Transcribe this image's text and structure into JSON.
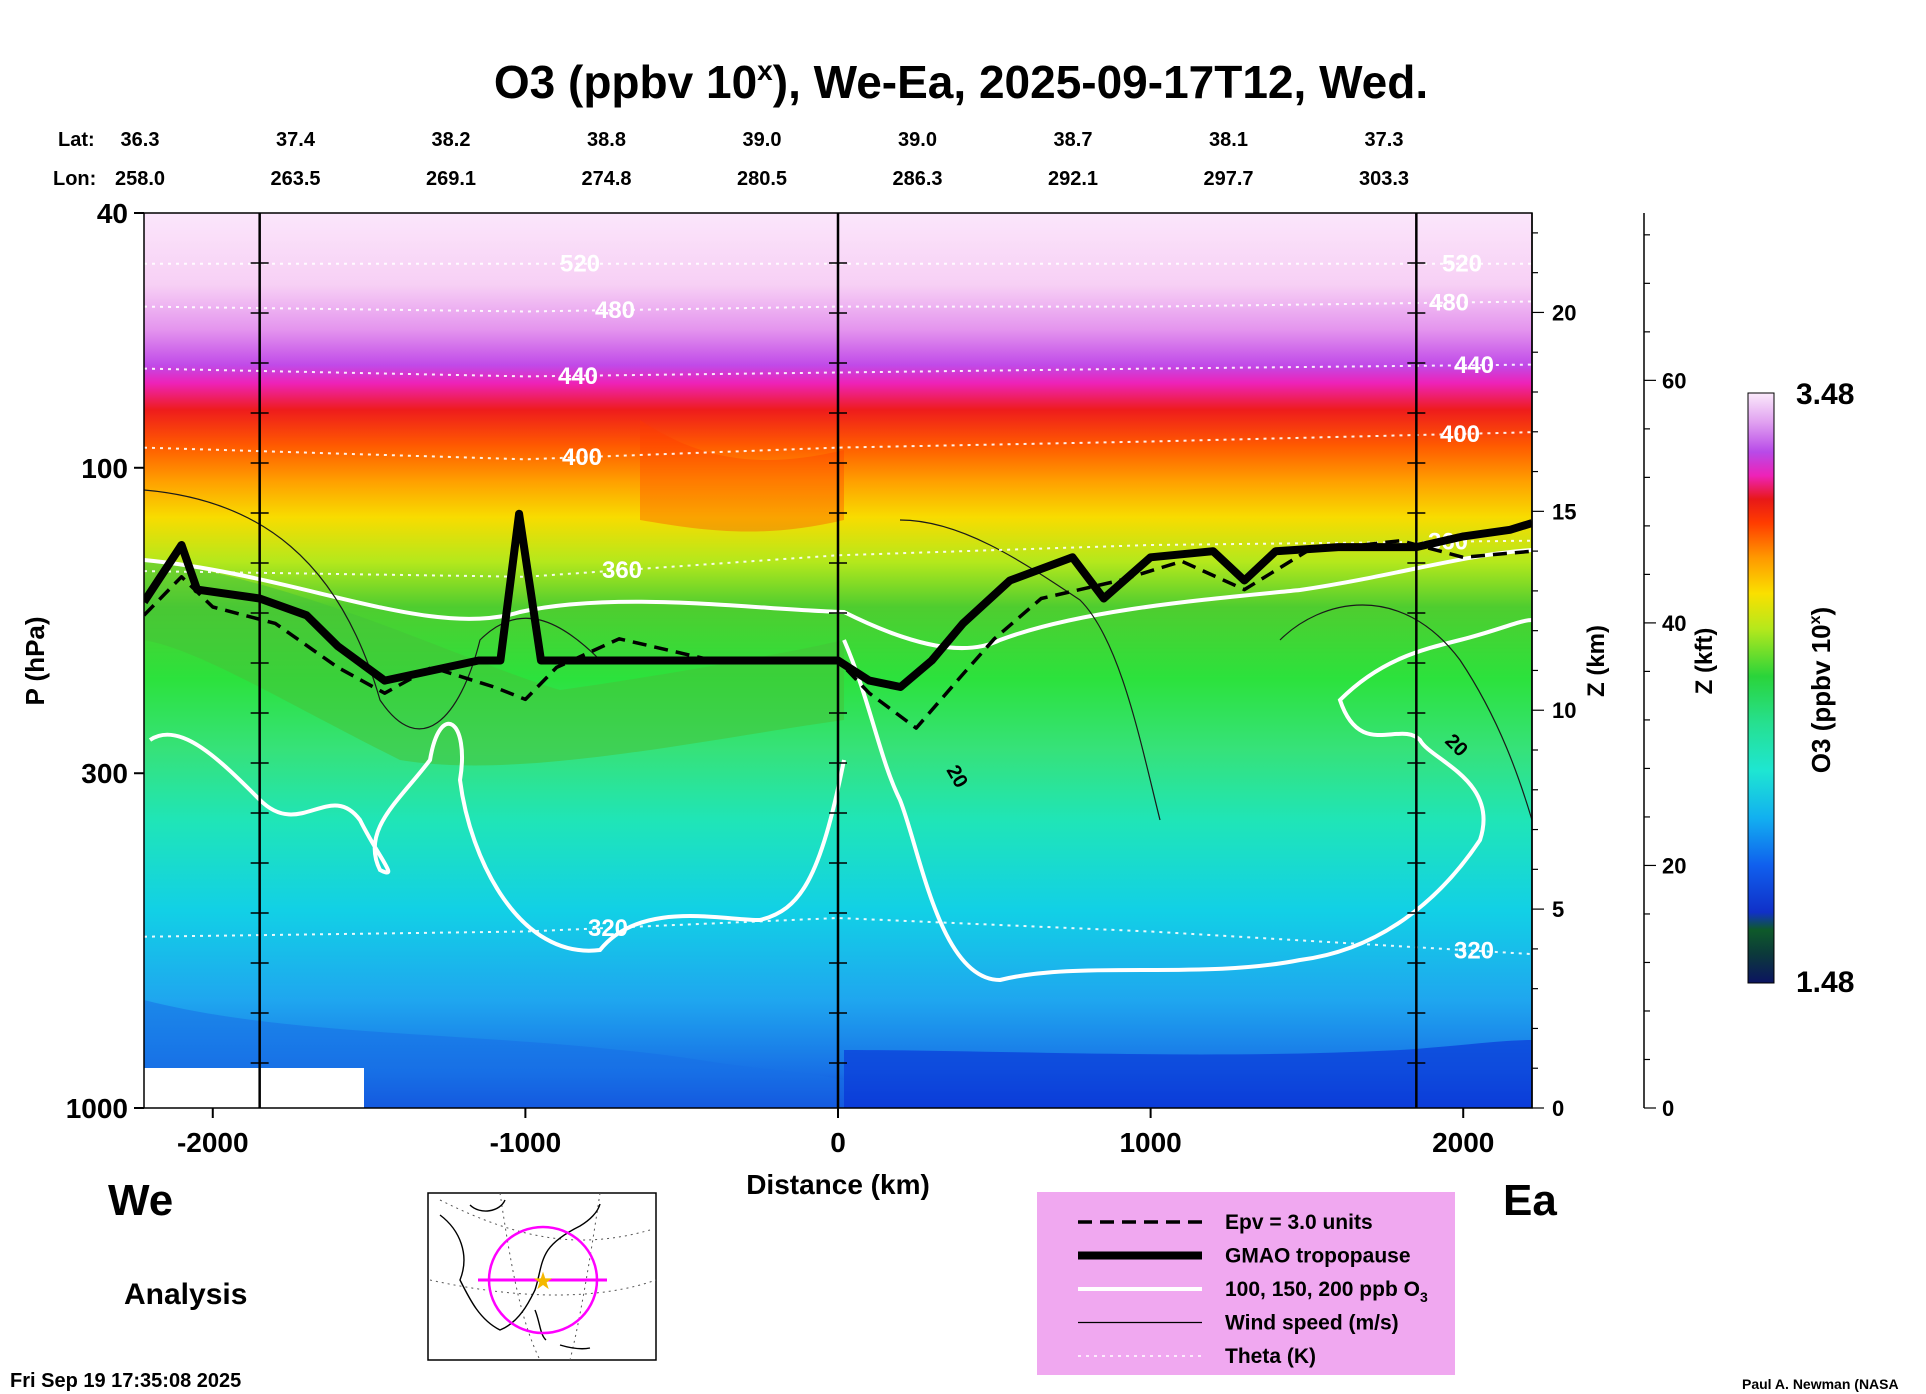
{
  "chart_data": {
    "type": "heatmap",
    "title": "O3 (ppbv 10",
    "title_sup": "x",
    "title_rest": "), We-Ea, 2025-09-17T12, Wed.",
    "lat_label": "Lat:",
    "lon_label": "Lon:",
    "lat_values": [
      "36.3",
      "37.4",
      "38.2",
      "38.8",
      "39.0",
      "39.0",
      "38.7",
      "38.1",
      "37.3"
    ],
    "lon_values": [
      "258.0",
      "263.5",
      "269.1",
      "274.8",
      "280.5",
      "286.3",
      "292.1",
      "297.7",
      "303.3"
    ],
    "xlabel": "Distance (km)",
    "xlim": [
      -2220,
      2220
    ],
    "x_ticks": [
      -2000,
      -1000,
      0,
      1000,
      2000
    ],
    "x_tick_labels": [
      "-2000",
      "-1000",
      "0",
      "1000",
      "2000"
    ],
    "ylabel": "P (hPa)",
    "ylim": [
      40,
      1000
    ],
    "y_ticks": [
      40,
      100,
      300,
      1000
    ],
    "y_tick_labels": [
      "40",
      "100",
      "300",
      "1000"
    ],
    "z_km_label": "Z (km)",
    "z_km_ticks": [
      0,
      5,
      10,
      15,
      20
    ],
    "z_km_tick_labels": [
      "0",
      "5",
      "10",
      "15",
      "20"
    ],
    "z_kft_label": "Z (kft)",
    "z_kft_ticks": [
      0,
      20,
      40,
      60
    ],
    "z_kft_tick_labels": [
      "0",
      "20",
      "40",
      "60"
    ],
    "colorbar_label": "O3 (ppbv 10",
    "colorbar_label_sup": "x",
    "colorbar_label_rest": ")",
    "colorbar_min": 1.48,
    "colorbar_max": 3.48,
    "colorbar_min_label": "1.48",
    "colorbar_max_label": "3.48",
    "left_end_label": "We",
    "right_end_label": "Ea",
    "theta_contours": [
      {
        "theta": 520,
        "label": "520",
        "points": [
          [
            -2220,
            48
          ],
          [
            0,
            48
          ],
          [
            2220,
            48
          ]
        ]
      },
      {
        "theta": 480,
        "label": "480",
        "points": [
          [
            -2220,
            56
          ],
          [
            -1000,
            57
          ],
          [
            0,
            56
          ],
          [
            1000,
            56
          ],
          [
            2220,
            55
          ]
        ]
      },
      {
        "theta": 440,
        "label": "440",
        "points": [
          [
            -2220,
            70
          ],
          [
            -1000,
            72
          ],
          [
            0,
            71
          ],
          [
            1000,
            70
          ],
          [
            2220,
            69
          ]
        ]
      },
      {
        "theta": 400,
        "label": "400",
        "points": [
          [
            -2220,
            93
          ],
          [
            -1000,
            97
          ],
          [
            0,
            93
          ],
          [
            1000,
            91
          ],
          [
            2220,
            88
          ]
        ]
      },
      {
        "theta": 360,
        "label": "360",
        "points": [
          [
            -2220,
            145
          ],
          [
            -1000,
            148
          ],
          [
            0,
            137
          ],
          [
            1000,
            132
          ],
          [
            2220,
            130
          ]
        ]
      },
      {
        "theta": 320,
        "label": "320",
        "points": [
          [
            -2220,
            540
          ],
          [
            -1000,
            530
          ],
          [
            0,
            505
          ],
          [
            1000,
            530
          ],
          [
            2220,
            575
          ]
        ]
      }
    ],
    "series": [
      {
        "name": "GMAO tropopause",
        "points": [
          [
            -2220,
            162
          ],
          [
            -2100,
            132
          ],
          [
            -2050,
            155
          ],
          [
            -1850,
            160
          ],
          [
            -1700,
            170
          ],
          [
            -1600,
            190
          ],
          [
            -1450,
            215
          ],
          [
            -1150,
            200
          ],
          [
            -1080,
            200
          ],
          [
            -1020,
            118
          ],
          [
            -950,
            200
          ],
          [
            0,
            200
          ],
          [
            100,
            215
          ],
          [
            200,
            220
          ],
          [
            300,
            200
          ],
          [
            400,
            175
          ],
          [
            550,
            150
          ],
          [
            750,
            138
          ],
          [
            850,
            160
          ],
          [
            1000,
            138
          ],
          [
            1200,
            135
          ],
          [
            1300,
            150
          ],
          [
            1400,
            135
          ],
          [
            1600,
            133
          ],
          [
            1850,
            133
          ],
          [
            2000,
            128
          ],
          [
            2150,
            125
          ],
          [
            2220,
            122
          ]
        ]
      },
      {
        "name": "Epv = 3.0 units",
        "points": [
          [
            -2220,
            170
          ],
          [
            -2100,
            148
          ],
          [
            -2000,
            165
          ],
          [
            -1800,
            175
          ],
          [
            -1600,
            205
          ],
          [
            -1450,
            225
          ],
          [
            -1300,
            205
          ],
          [
            -1100,
            220
          ],
          [
            -1000,
            230
          ],
          [
            -900,
            205
          ],
          [
            -700,
            185
          ],
          [
            -400,
            200
          ],
          [
            0,
            200
          ],
          [
            100,
            225
          ],
          [
            250,
            255
          ],
          [
            400,
            210
          ],
          [
            500,
            185
          ],
          [
            650,
            160
          ],
          [
            900,
            150
          ],
          [
            1100,
            140
          ],
          [
            1300,
            155
          ],
          [
            1500,
            135
          ],
          [
            1800,
            130
          ],
          [
            2000,
            138
          ],
          [
            2220,
            135
          ]
        ]
      }
    ],
    "legend": [
      {
        "style": "dashed",
        "label": "Epv = 3.0 units"
      },
      {
        "style": "thick",
        "label": "GMAO tropopause"
      },
      {
        "style": "white",
        "label": "100, 150, 200 ppb O",
        "sub": "3"
      },
      {
        "style": "thin",
        "label": "Wind speed (m/s)"
      },
      {
        "style": "dotted",
        "label": "Theta (K)"
      }
    ],
    "wind_contour_labels": [
      "20",
      "20"
    ]
  },
  "footer": {
    "analysis_label": "Analysis",
    "timestamp": "Fri Sep 19 17:35:08 2025",
    "credit": "Paul A. Newman (NASA"
  },
  "colors": {
    "legend_bg": "#f0a8f0",
    "tropopause": "#000000",
    "ozone_contour": "#ffffff",
    "map_track": "#ff00ff",
    "map_star": "#f5b800"
  }
}
